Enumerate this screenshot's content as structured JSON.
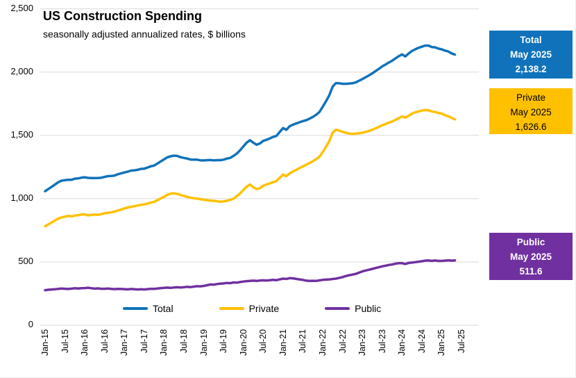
{
  "title": "US Construction Spending",
  "subtitle": "seasonally adjusted annualized rates, $ billions",
  "colors": {
    "total": "#1072BA",
    "private": "#FFC000",
    "public": "#7030A0",
    "gridline": "#D9D9D9"
  },
  "callouts": [
    {
      "key": "total",
      "name": "Total",
      "date": "May 2025",
      "value": "2,138.2",
      "bg": "#1072BA",
      "text_color": "#FFFFFF",
      "bold": true
    },
    {
      "key": "private",
      "name": "Private",
      "date": "May 2025",
      "value": "1,626.6",
      "bg": "#FFC000",
      "text_color": "#000000",
      "bold": false
    },
    {
      "key": "public",
      "name": "Public",
      "date": "May 2025",
      "value": "511.6",
      "bg": "#7030A0",
      "text_color": "#FFFFFF",
      "bold": true
    }
  ],
  "chart_data": {
    "type": "line",
    "title": "US Construction Spending",
    "subtitle": "seasonally adjusted annualized rates, $ billions",
    "frequency": "monthly",
    "x_start": "Jan-2015",
    "x_end": "May-2025",
    "x_tick_labels": [
      "Jan-15",
      "Jul-15",
      "Jan-16",
      "Jul-16",
      "Jan-17",
      "Jul-17",
      "Jan-18",
      "Jul-18",
      "Jan-19",
      "Jul-19",
      "Jan-20",
      "Jul-20",
      "Jan-21",
      "Jul-21",
      "Jan-22",
      "Jul-22",
      "Jan-23",
      "Jul-23",
      "Jan-24",
      "Jul-24",
      "Jan-25",
      "Jul-25"
    ],
    "y_ticks": [
      0,
      500,
      1000,
      1500,
      2000,
      2500
    ],
    "ylim": [
      0,
      2500
    ],
    "grid": true,
    "legend_position": "bottom-center",
    "series": [
      {
        "name": "Total",
        "color": "#1072BA",
        "last_point": {
          "date": "May 2025",
          "value": 2138.2
        },
        "values": [
          1059,
          1077,
          1094,
          1112,
          1130,
          1142,
          1146,
          1149,
          1149,
          1158,
          1160,
          1166,
          1169,
          1164,
          1163,
          1163,
          1163,
          1166,
          1172,
          1178,
          1179,
          1183,
          1193,
          1200,
          1207,
          1213,
          1222,
          1224,
          1228,
          1235,
          1237,
          1246,
          1256,
          1262,
          1278,
          1295,
          1310,
          1327,
          1335,
          1340,
          1338,
          1328,
          1322,
          1317,
          1309,
          1308,
          1308,
          1303,
          1302,
          1304,
          1306,
          1303,
          1304,
          1304,
          1308,
          1317,
          1322,
          1338,
          1356,
          1383,
          1413,
          1443,
          1462,
          1442,
          1426,
          1436,
          1457,
          1465,
          1476,
          1488,
          1496,
          1527,
          1558,
          1544,
          1572,
          1585,
          1594,
          1604,
          1613,
          1620,
          1632,
          1646,
          1663,
          1684,
          1726,
          1770,
          1817,
          1885,
          1913,
          1912,
          1908,
          1908,
          1910,
          1912,
          1919,
          1932,
          1945,
          1960,
          1974,
          1990,
          2008,
          2026,
          2045,
          2060,
          2076,
          2090,
          2108,
          2126,
          2140,
          2124,
          2147,
          2167,
          2180,
          2192,
          2201,
          2210,
          2210,
          2198,
          2196,
          2186,
          2180,
          2170,
          2163,
          2148,
          2138.2
        ]
      },
      {
        "name": "Private",
        "color": "#FFC000",
        "last_point": {
          "date": "May 2025",
          "value": 1626.6
        },
        "values": [
          782,
          797,
          812,
          828,
          843,
          852,
          858,
          863,
          860,
          866,
          870,
          874,
          876,
          868,
          871,
          874,
          872,
          878,
          884,
          888,
          892,
          898,
          906,
          914,
          922,
          930,
          936,
          940,
          946,
          951,
          955,
          961,
          968,
          975,
          988,
          1002,
          1015,
          1030,
          1040,
          1042,
          1038,
          1030,
          1022,
          1014,
          1008,
          1003,
          1000,
          996,
          992,
          988,
          984,
          983,
          979,
          976,
          978,
          983,
          990,
          1000,
          1020,
          1042,
          1068,
          1095,
          1112,
          1090,
          1076,
          1083,
          1102,
          1112,
          1120,
          1130,
          1140,
          1165,
          1190,
          1178,
          1200,
          1215,
          1228,
          1242,
          1255,
          1268,
          1282,
          1295,
          1313,
          1330,
          1368,
          1410,
          1455,
          1520,
          1545,
          1538,
          1528,
          1520,
          1515,
          1512,
          1514,
          1517,
          1520,
          1528,
          1536,
          1545,
          1556,
          1568,
          1580,
          1590,
          1600,
          1610,
          1622,
          1636,
          1650,
          1640,
          1655,
          1672,
          1682,
          1690,
          1696,
          1700,
          1698,
          1690,
          1684,
          1678,
          1672,
          1660,
          1650,
          1638,
          1626.6
        ]
      },
      {
        "name": "Public",
        "color": "#7030A0",
        "last_point": {
          "date": "May 2025",
          "value": 511.6
        },
        "values": [
          277,
          280,
          282,
          284,
          287,
          290,
          288,
          286,
          289,
          292,
          290,
          292,
          293,
          296,
          292,
          289,
          291,
          288,
          288,
          290,
          287,
          285,
          287,
          286,
          285,
          283,
          286,
          284,
          282,
          284,
          282,
          285,
          288,
          287,
          290,
          293,
          295,
          297,
          295,
          298,
          300,
          298,
          300,
          303,
          301,
          305,
          308,
          307,
          310,
          316,
          322,
          320,
          325,
          328,
          330,
          334,
          332,
          338,
          336,
          341,
          345,
          348,
          350,
          352,
          350,
          353,
          355,
          353,
          356,
          358,
          356,
          362,
          368,
          366,
          372,
          370,
          366,
          362,
          358,
          352,
          350,
          351,
          350,
          354,
          358,
          360,
          362,
          365,
          368,
          374,
          380,
          388,
          395,
          400,
          405,
          415,
          425,
          432,
          438,
          445,
          452,
          458,
          465,
          470,
          476,
          480,
          486,
          490,
          490,
          484,
          492,
          495,
          498,
          502,
          505,
          510,
          512,
          508,
          512,
          508,
          508,
          510,
          513,
          510,
          511.6
        ]
      }
    ]
  }
}
